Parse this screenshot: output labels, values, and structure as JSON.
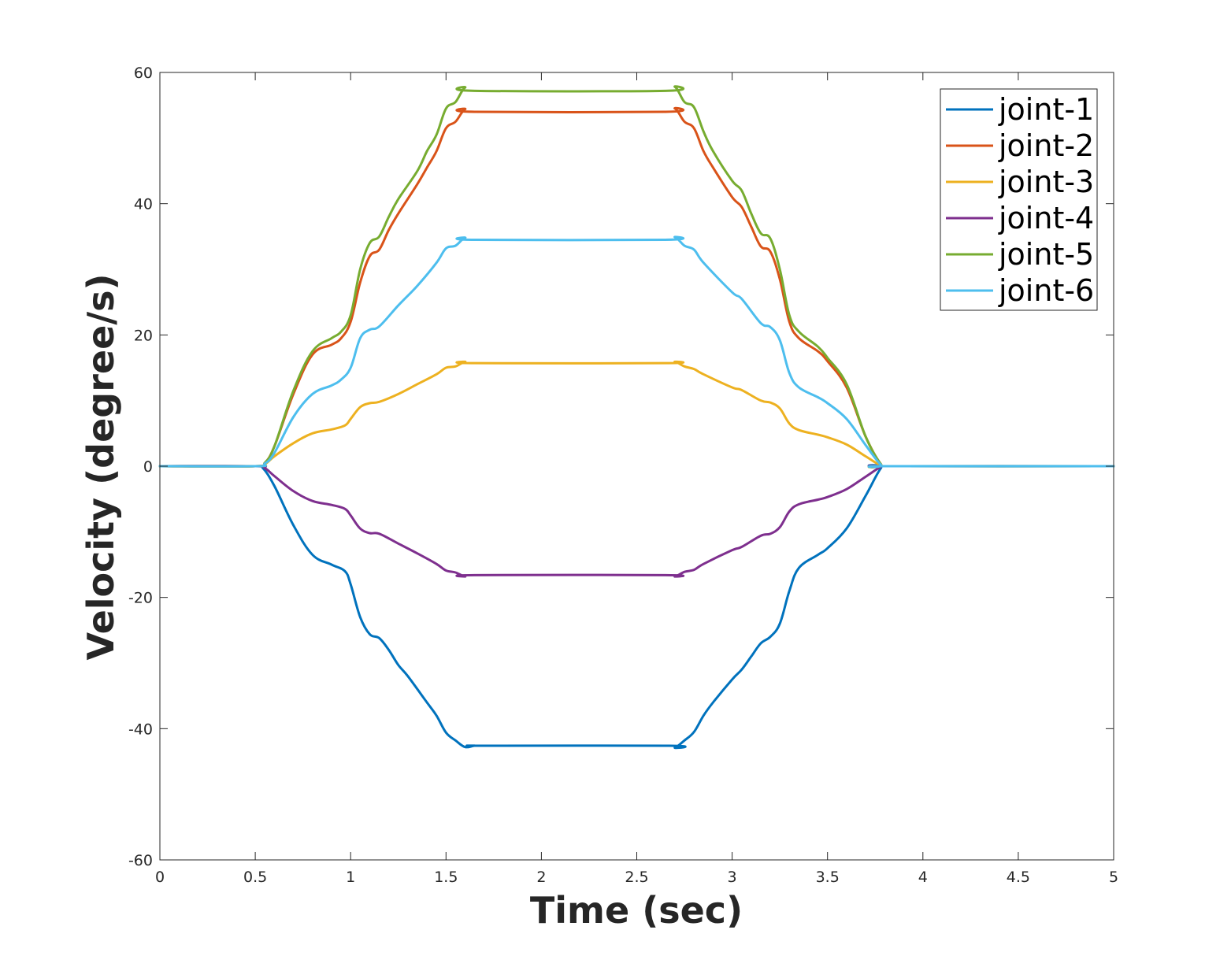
{
  "chart_data": {
    "type": "line",
    "xlabel": "Time (sec)",
    "ylabel": "Velocity (degree/s)",
    "xlim": [
      0,
      5
    ],
    "ylim": [
      -60,
      60
    ],
    "xticks": [
      0,
      0.5,
      1,
      1.5,
      2,
      2.5,
      3,
      3.5,
      4,
      4.5,
      5
    ],
    "xtick_labels": [
      "0",
      "0.5",
      "1",
      "1.5",
      "2",
      "2.5",
      "3",
      "3.5",
      "4",
      "4.5",
      "5"
    ],
    "yticks": [
      -60,
      -40,
      -20,
      0,
      20,
      40,
      60
    ],
    "ytick_labels": [
      "-60",
      "-40",
      "-20",
      "0",
      "20",
      "40",
      "60"
    ],
    "grid": false,
    "legend_position": "top-right",
    "series": [
      {
        "name": "joint-1",
        "color": "#0072BD",
        "points": [
          [
            0,
            0
          ],
          [
            0.5,
            0
          ],
          [
            0.54,
            -0.3
          ],
          [
            0.6,
            -3
          ],
          [
            0.7,
            -9
          ],
          [
            0.8,
            -13.5
          ],
          [
            0.9,
            -15
          ],
          [
            0.97,
            -16
          ],
          [
            1.0,
            -18
          ],
          [
            1.05,
            -23
          ],
          [
            1.1,
            -25.6
          ],
          [
            1.15,
            -26.2
          ],
          [
            1.2,
            -28
          ],
          [
            1.25,
            -30.3
          ],
          [
            1.3,
            -32
          ],
          [
            1.4,
            -36
          ],
          [
            1.45,
            -38
          ],
          [
            1.5,
            -40.6
          ],
          [
            1.55,
            -41.8
          ],
          [
            1.6,
            -42.8
          ],
          [
            1.65,
            -42.6
          ],
          [
            1.7,
            -42.6
          ],
          [
            2.67,
            -42.6
          ],
          [
            2.7,
            -42.9
          ],
          [
            2.75,
            -41.8
          ],
          [
            2.8,
            -40.5
          ],
          [
            2.85,
            -38
          ],
          [
            2.9,
            -36
          ],
          [
            3.0,
            -32.5
          ],
          [
            3.05,
            -31
          ],
          [
            3.1,
            -29
          ],
          [
            3.15,
            -27
          ],
          [
            3.2,
            -26
          ],
          [
            3.25,
            -24
          ],
          [
            3.3,
            -19
          ],
          [
            3.35,
            -15.5
          ],
          [
            3.45,
            -13.5
          ],
          [
            3.5,
            -12.5
          ],
          [
            3.6,
            -9.5
          ],
          [
            3.7,
            -4.5
          ],
          [
            3.78,
            -0.3
          ],
          [
            3.82,
            0
          ],
          [
            5,
            0
          ]
        ]
      },
      {
        "name": "joint-2",
        "color": "#D95319",
        "points": [
          [
            0,
            0
          ],
          [
            0.5,
            0
          ],
          [
            0.55,
            0.5
          ],
          [
            0.6,
            3
          ],
          [
            0.7,
            11
          ],
          [
            0.8,
            17
          ],
          [
            0.9,
            18.5
          ],
          [
            0.95,
            19.5
          ],
          [
            1.0,
            22
          ],
          [
            1.05,
            28
          ],
          [
            1.1,
            32
          ],
          [
            1.15,
            33
          ],
          [
            1.2,
            36
          ],
          [
            1.25,
            38.5
          ],
          [
            1.35,
            43
          ],
          [
            1.4,
            45.5
          ],
          [
            1.45,
            48
          ],
          [
            1.5,
            51.5
          ],
          [
            1.55,
            52.5
          ],
          [
            1.6,
            54.4
          ],
          [
            1.65,
            54
          ],
          [
            2.65,
            54
          ],
          [
            2.7,
            54.5
          ],
          [
            2.75,
            52.5
          ],
          [
            2.8,
            51.5
          ],
          [
            2.85,
            48
          ],
          [
            2.9,
            45.5
          ],
          [
            3.0,
            41
          ],
          [
            3.05,
            39.5
          ],
          [
            3.1,
            36.5
          ],
          [
            3.15,
            33.5
          ],
          [
            3.2,
            32.7
          ],
          [
            3.25,
            28.5
          ],
          [
            3.3,
            22
          ],
          [
            3.35,
            19.5
          ],
          [
            3.45,
            17.5
          ],
          [
            3.5,
            16
          ],
          [
            3.6,
            12
          ],
          [
            3.7,
            4.5
          ],
          [
            3.78,
            0.3
          ],
          [
            3.82,
            0
          ],
          [
            5,
            0
          ]
        ]
      },
      {
        "name": "joint-3",
        "color": "#EDB120",
        "points": [
          [
            0,
            0
          ],
          [
            0.5,
            0
          ],
          [
            0.55,
            0.3
          ],
          [
            0.6,
            1.5
          ],
          [
            0.7,
            3.5
          ],
          [
            0.8,
            5
          ],
          [
            0.9,
            5.6
          ],
          [
            0.97,
            6.2
          ],
          [
            1.0,
            7.2
          ],
          [
            1.05,
            9
          ],
          [
            1.1,
            9.6
          ],
          [
            1.15,
            9.8
          ],
          [
            1.25,
            11
          ],
          [
            1.35,
            12.5
          ],
          [
            1.45,
            14
          ],
          [
            1.5,
            15
          ],
          [
            1.55,
            15.2
          ],
          [
            1.6,
            15.9
          ],
          [
            1.65,
            15.7
          ],
          [
            2.65,
            15.7
          ],
          [
            2.7,
            15.9
          ],
          [
            2.75,
            15.2
          ],
          [
            2.8,
            14.8
          ],
          [
            2.85,
            14
          ],
          [
            3.0,
            12
          ],
          [
            3.05,
            11.6
          ],
          [
            3.15,
            10
          ],
          [
            3.2,
            9.7
          ],
          [
            3.25,
            8.8
          ],
          [
            3.3,
            6.5
          ],
          [
            3.35,
            5.5
          ],
          [
            3.45,
            4.8
          ],
          [
            3.5,
            4.4
          ],
          [
            3.6,
            3.3
          ],
          [
            3.7,
            1.5
          ],
          [
            3.78,
            0.1
          ],
          [
            3.82,
            0
          ],
          [
            5,
            0
          ]
        ]
      },
      {
        "name": "joint-4",
        "color": "#7E2F8E",
        "points": [
          [
            0,
            0
          ],
          [
            0.5,
            0
          ],
          [
            0.55,
            -0.3
          ],
          [
            0.6,
            -1.5
          ],
          [
            0.7,
            -3.8
          ],
          [
            0.8,
            -5.3
          ],
          [
            0.9,
            -5.9
          ],
          [
            0.97,
            -6.5
          ],
          [
            1.0,
            -7.5
          ],
          [
            1.05,
            -9.5
          ],
          [
            1.1,
            -10.2
          ],
          [
            1.15,
            -10.3
          ],
          [
            1.25,
            -11.8
          ],
          [
            1.35,
            -13.3
          ],
          [
            1.45,
            -14.9
          ],
          [
            1.5,
            -15.9
          ],
          [
            1.55,
            -16.2
          ],
          [
            1.6,
            -16.8
          ],
          [
            1.65,
            -16.6
          ],
          [
            2.65,
            -16.6
          ],
          [
            2.7,
            -16.8
          ],
          [
            2.75,
            -16.1
          ],
          [
            2.8,
            -15.8
          ],
          [
            2.85,
            -14.9
          ],
          [
            3.0,
            -12.8
          ],
          [
            3.05,
            -12.3
          ],
          [
            3.15,
            -10.6
          ],
          [
            3.2,
            -10.3
          ],
          [
            3.25,
            -9.3
          ],
          [
            3.3,
            -6.9
          ],
          [
            3.35,
            -5.8
          ],
          [
            3.45,
            -5.1
          ],
          [
            3.5,
            -4.7
          ],
          [
            3.6,
            -3.5
          ],
          [
            3.7,
            -1.6
          ],
          [
            3.78,
            -0.1
          ],
          [
            3.82,
            0
          ],
          [
            5,
            0
          ]
        ]
      },
      {
        "name": "joint-5",
        "color": "#77AC30",
        "points": [
          [
            0,
            0
          ],
          [
            0.5,
            0
          ],
          [
            0.55,
            0.5
          ],
          [
            0.6,
            3
          ],
          [
            0.7,
            11.5
          ],
          [
            0.8,
            17.5
          ],
          [
            0.9,
            19.5
          ],
          [
            0.95,
            20.5
          ],
          [
            1.0,
            23
          ],
          [
            1.05,
            30
          ],
          [
            1.1,
            34
          ],
          [
            1.15,
            35
          ],
          [
            1.2,
            38
          ],
          [
            1.25,
            40.7
          ],
          [
            1.35,
            45
          ],
          [
            1.4,
            48
          ],
          [
            1.45,
            50.5
          ],
          [
            1.5,
            54.5
          ],
          [
            1.55,
            55.5
          ],
          [
            1.6,
            57.7
          ],
          [
            1.65,
            57.2
          ],
          [
            2.65,
            57.2
          ],
          [
            2.7,
            57.8
          ],
          [
            2.75,
            55.5
          ],
          [
            2.8,
            54.7
          ],
          [
            2.85,
            51
          ],
          [
            2.9,
            48
          ],
          [
            3.0,
            43.5
          ],
          [
            3.05,
            42
          ],
          [
            3.1,
            38.5
          ],
          [
            3.15,
            35.5
          ],
          [
            3.2,
            34.7
          ],
          [
            3.25,
            30
          ],
          [
            3.3,
            23
          ],
          [
            3.35,
            20.5
          ],
          [
            3.45,
            18.2
          ],
          [
            3.5,
            16.5
          ],
          [
            3.6,
            12.5
          ],
          [
            3.7,
            4.5
          ],
          [
            3.78,
            0.3
          ],
          [
            3.82,
            0
          ],
          [
            5,
            0
          ]
        ]
      },
      {
        "name": "joint-6",
        "color": "#4DBEEE",
        "points": [
          [
            0,
            0
          ],
          [
            0.5,
            0
          ],
          [
            0.55,
            0.4
          ],
          [
            0.6,
            2
          ],
          [
            0.7,
            7.5
          ],
          [
            0.8,
            11
          ],
          [
            0.9,
            12.3
          ],
          [
            0.95,
            13.2
          ],
          [
            1.0,
            15
          ],
          [
            1.05,
            19.5
          ],
          [
            1.1,
            20.8
          ],
          [
            1.15,
            21.3
          ],
          [
            1.25,
            24.5
          ],
          [
            1.35,
            27.5
          ],
          [
            1.45,
            31
          ],
          [
            1.5,
            33.2
          ],
          [
            1.55,
            33.6
          ],
          [
            1.6,
            34.8
          ],
          [
            1.65,
            34.5
          ],
          [
            2.65,
            34.5
          ],
          [
            2.7,
            34.9
          ],
          [
            2.75,
            33.6
          ],
          [
            2.8,
            33
          ],
          [
            2.85,
            31
          ],
          [
            3.0,
            26.5
          ],
          [
            3.05,
            25.5
          ],
          [
            3.15,
            21.8
          ],
          [
            3.2,
            21.2
          ],
          [
            3.25,
            19.2
          ],
          [
            3.3,
            14.2
          ],
          [
            3.35,
            12
          ],
          [
            3.45,
            10.5
          ],
          [
            3.5,
            9.6
          ],
          [
            3.6,
            7.2
          ],
          [
            3.7,
            3.2
          ],
          [
            3.78,
            0.2
          ],
          [
            3.82,
            0
          ],
          [
            5,
            0
          ]
        ]
      }
    ]
  }
}
